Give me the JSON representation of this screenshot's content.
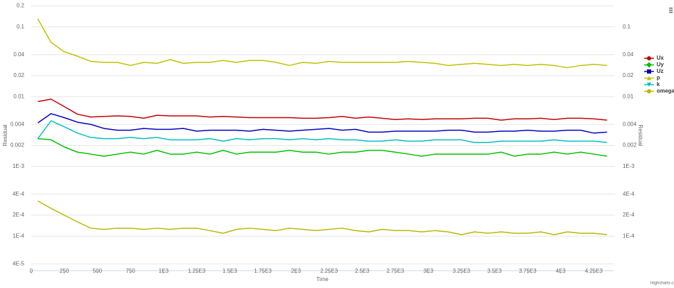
{
  "chart_data": {
    "type": "line",
    "x_label": "Time",
    "y_label": "Residual",
    "y2_label": "Residual",
    "credit": "Highcharts.c",
    "y_log": true,
    "grid": true,
    "legend": "right",
    "xlim": [
      0,
      4400
    ],
    "xticks": [
      0,
      250,
      500,
      750,
      {
        "value": 1000,
        "label": "1E3"
      },
      {
        "value": 1250,
        "label": "1.25E3"
      },
      {
        "value": 1500,
        "label": "1.5E3"
      },
      {
        "value": 1750,
        "label": "1.75E3"
      },
      {
        "value": 2000,
        "label": "2E3"
      },
      {
        "value": 2250,
        "label": "2.25E3"
      },
      {
        "value": 2500,
        "label": "2.5E3"
      },
      {
        "value": 2750,
        "label": "2.75E3"
      },
      {
        "value": 3000,
        "label": "3E3"
      },
      {
        "value": 3250,
        "label": "3.25E3"
      },
      {
        "value": 3500,
        "label": "3.5E3"
      },
      {
        "value": 3750,
        "label": "3.75E3"
      },
      {
        "value": 4000,
        "label": "4E3"
      },
      {
        "value": 4250,
        "label": "4.25E3"
      }
    ],
    "ylim": [
      3.2e-05,
      0.2
    ],
    "yticks": [
      0.2,
      0.1,
      0.04,
      0.02,
      0.01,
      0.004,
      0.002,
      {
        "value": 0.001,
        "label": "1E-3"
      },
      {
        "value": 0.0004,
        "label": "4E-4"
      },
      {
        "value": 0.0002,
        "label": "2E-4"
      },
      {
        "value": 0.0001,
        "label": "1E-4"
      },
      {
        "value": 4e-05,
        "label": "4E-5"
      }
    ],
    "y2lim": [
      3.2e-05,
      0.2
    ],
    "y2ticks": [
      0.1,
      0.04,
      0.02,
      0.01,
      0.004,
      0.002,
      {
        "value": 0.001,
        "label": "1E-3"
      },
      {
        "value": 0.0004,
        "label": "4E-4"
      },
      {
        "value": 0.0002,
        "label": "2E-4"
      },
      {
        "value": 0.0001,
        "label": "1E-4"
      }
    ],
    "x": [
      50,
      150,
      250,
      350,
      450,
      550,
      650,
      750,
      850,
      950,
      1050,
      1150,
      1250,
      1350,
      1450,
      1550,
      1650,
      1750,
      1850,
      1950,
      2050,
      2150,
      2250,
      2350,
      2450,
      2550,
      2650,
      2750,
      2850,
      2950,
      3050,
      3150,
      3250,
      3350,
      3450,
      3550,
      3650,
      3750,
      3850,
      3950,
      4050,
      4150,
      4250,
      4350
    ],
    "series": [
      {
        "name": "Ux",
        "color": "#c00000",
        "marker": "circle",
        "values": [
          0.0085,
          0.0092,
          0.0072,
          0.0056,
          0.0051,
          0.0052,
          0.0053,
          0.0052,
          0.0049,
          0.0054,
          0.0053,
          0.0053,
          0.0053,
          0.0051,
          0.0052,
          0.0051,
          0.005,
          0.005,
          0.005,
          0.005,
          0.0049,
          0.0049,
          0.005,
          0.0052,
          0.0049,
          0.0051,
          0.0049,
          0.0047,
          0.0048,
          0.0047,
          0.0048,
          0.0048,
          0.0048,
          0.0049,
          0.0049,
          0.0046,
          0.0048,
          0.0048,
          0.0049,
          0.0047,
          0.0049,
          0.0049,
          0.0048,
          0.0046
        ]
      },
      {
        "name": "Uy",
        "color": "#00c000",
        "marker": "diamond",
        "values": [
          0.0025,
          0.0024,
          0.0019,
          0.0016,
          0.0015,
          0.0014,
          0.0015,
          0.0016,
          0.0015,
          0.0017,
          0.0015,
          0.0015,
          0.0016,
          0.0015,
          0.0017,
          0.0015,
          0.0016,
          0.0016,
          0.0016,
          0.0017,
          0.0016,
          0.0016,
          0.0015,
          0.0016,
          0.0016,
          0.0017,
          0.0017,
          0.0016,
          0.0015,
          0.0014,
          0.0015,
          0.0015,
          0.0015,
          0.0015,
          0.0015,
          0.0016,
          0.0014,
          0.0015,
          0.0015,
          0.0016,
          0.0015,
          0.0016,
          0.0015,
          0.0014
        ]
      },
      {
        "name": "Uz",
        "color": "#0000c0",
        "marker": "square",
        "values": [
          0.0042,
          0.0057,
          0.005,
          0.0043,
          0.004,
          0.0035,
          0.0033,
          0.0033,
          0.0035,
          0.0034,
          0.0034,
          0.0035,
          0.0032,
          0.0033,
          0.0033,
          0.0033,
          0.0032,
          0.0034,
          0.0033,
          0.0032,
          0.0033,
          0.0034,
          0.0035,
          0.0033,
          0.0034,
          0.0031,
          0.0031,
          0.0032,
          0.0032,
          0.0032,
          0.0032,
          0.0033,
          0.0033,
          0.0031,
          0.0031,
          0.0032,
          0.0032,
          0.0033,
          0.0032,
          0.0032,
          0.0033,
          0.0033,
          0.003,
          0.0031
        ]
      },
      {
        "name": "p",
        "color": "#c0c000",
        "marker": "triangle",
        "values": [
          0.13,
          0.06,
          0.044,
          0.038,
          0.032,
          0.031,
          0.031,
          0.028,
          0.031,
          0.03,
          0.034,
          0.03,
          0.031,
          0.031,
          0.033,
          0.031,
          0.033,
          0.033,
          0.031,
          0.028,
          0.031,
          0.03,
          0.032,
          0.031,
          0.031,
          0.031,
          0.031,
          0.031,
          0.032,
          0.031,
          0.03,
          0.028,
          0.029,
          0.03,
          0.029,
          0.028,
          0.029,
          0.028,
          0.029,
          0.028,
          0.026,
          0.028,
          0.029,
          0.028
        ]
      },
      {
        "name": "k",
        "color": "#00c0c0",
        "marker": "triangle-down",
        "values": [
          0.0025,
          0.0045,
          0.0037,
          0.003,
          0.0026,
          0.0025,
          0.0025,
          0.0026,
          0.0025,
          0.0026,
          0.0024,
          0.0024,
          0.0024,
          0.0025,
          0.0023,
          0.0025,
          0.0024,
          0.0025,
          0.0025,
          0.0024,
          0.0025,
          0.0024,
          0.0025,
          0.0024,
          0.0024,
          0.0023,
          0.0023,
          0.0024,
          0.0023,
          0.0023,
          0.0024,
          0.0024,
          0.0024,
          0.0022,
          0.0022,
          0.0023,
          0.0023,
          0.0023,
          0.0023,
          0.0024,
          0.0023,
          0.0023,
          0.0023,
          0.0022
        ]
      },
      {
        "name": "omega",
        "color": "#b8b800",
        "marker": "circle",
        "values": [
          0.00032,
          0.00025,
          0.0002,
          0.00016,
          0.00013,
          0.000125,
          0.00013,
          0.00013,
          0.000125,
          0.00013,
          0.000125,
          0.00013,
          0.00013,
          0.00012,
          0.00011,
          0.000125,
          0.00013,
          0.000125,
          0.00012,
          0.00013,
          0.000125,
          0.00012,
          0.000125,
          0.00013,
          0.00012,
          0.000115,
          0.000125,
          0.00012,
          0.00012,
          0.000115,
          0.00012,
          0.000115,
          0.000105,
          0.000115,
          0.00011,
          0.000115,
          0.00011,
          0.00011,
          0.000115,
          0.000105,
          0.000115,
          0.00011,
          0.00011,
          0.000105
        ]
      }
    ]
  }
}
